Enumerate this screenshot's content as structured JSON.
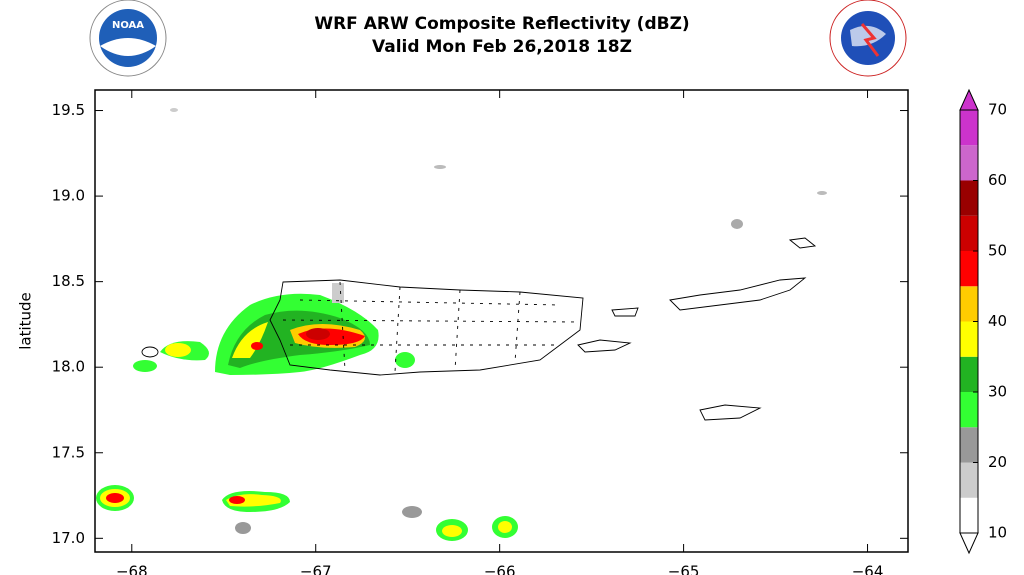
{
  "header": {
    "title": "WRF ARW Composite Reflectivity (dBZ)",
    "subtitle": "Valid Mon Feb 26,2018 18Z",
    "logo_text": "NOAA"
  },
  "map": {
    "ylabel": "latitude",
    "xlim": [
      -68.2,
      -63.78
    ],
    "ylim": [
      16.92,
      19.62
    ],
    "xticks": [
      {
        "value": -68,
        "label": "−68"
      },
      {
        "value": -67,
        "label": "−67"
      },
      {
        "value": -66,
        "label": "−66"
      },
      {
        "value": -65,
        "label": "−65"
      },
      {
        "value": -64,
        "label": "−64"
      }
    ],
    "yticks": [
      {
        "value": 17,
        "label": "17.0"
      },
      17.5,
      {
        "value": 18,
        "label": "18.0"
      },
      18.5,
      {
        "value": 19,
        "label": "19.0"
      },
      19.5
    ]
  },
  "colorbar": {
    "ticks": [
      10,
      20,
      30,
      40,
      50,
      60,
      70
    ],
    "bounds": [
      10,
      15,
      20,
      25,
      30,
      35,
      40,
      45,
      50,
      55,
      60,
      65,
      70
    ],
    "colors": [
      "#ffffff",
      "#cccccc",
      "#999999",
      "#33ff33",
      "#22b322",
      "#ffff00",
      "#ffcc00",
      "#ff0000",
      "#cc0000",
      "#990000",
      "#cc66cc",
      "#cc33cc"
    ]
  }
}
